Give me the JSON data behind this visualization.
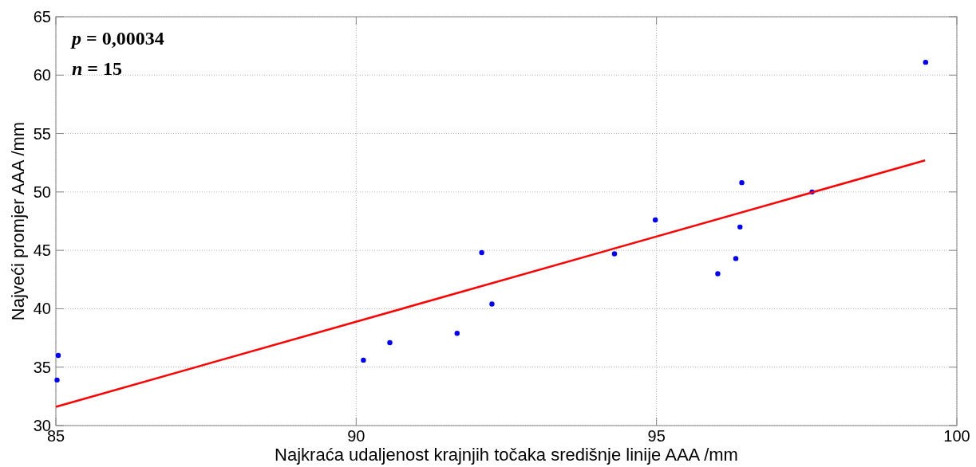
{
  "chart_data": {
    "type": "scatter",
    "xlabel": "Najkraća udaljenost krajnjih točaka središnje linije AAA /mm",
    "ylabel": "Najveći promjer AAA /mm",
    "annotations": [
      "p = 0,00034",
      "n = 15"
    ],
    "xlim": [
      85,
      100
    ],
    "xticks": [
      85,
      90,
      95,
      100
    ],
    "ylim": [
      30,
      65
    ],
    "yticks": [
      30,
      35,
      40,
      45,
      50,
      55,
      60,
      65
    ],
    "grid": true,
    "marker": "circle",
    "series": [
      {
        "color": "#0000ff",
        "x": [
          85.02,
          85.04,
          90.12,
          90.56,
          91.68,
          92.09,
          92.26,
          94.3,
          94.98,
          96.02,
          96.32,
          96.39,
          96.42,
          97.59,
          99.48
        ],
        "values": [
          33.9,
          36.0,
          35.6,
          37.1,
          37.9,
          44.8,
          40.4,
          44.7,
          47.6,
          43.0,
          44.3,
          47.0,
          50.8,
          50.0,
          61.1
        ]
      },
      {
        "type": "line",
        "color": "#ff0000",
        "x": [
          85,
          99.47
        ],
        "values": [
          31.6,
          52.7
        ],
        "marker": "none"
      }
    ]
  }
}
